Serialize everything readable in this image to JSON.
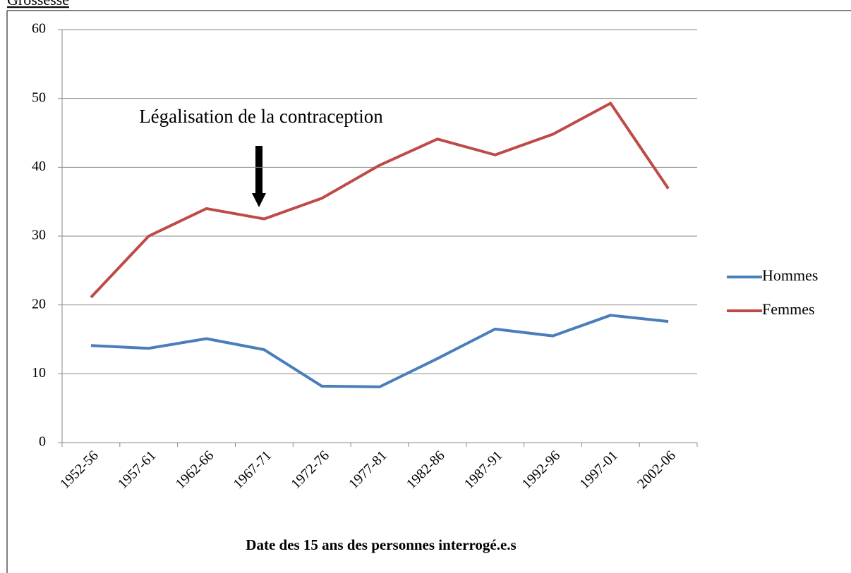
{
  "heading": "Grossesse",
  "chart_data": {
    "type": "line",
    "annotation": "Légalisation de la contraception",
    "x_label": "Date des 15 ans des personnes interrogé.e.s",
    "categories": [
      "1952-56",
      "1957-61",
      "1962-66",
      "1967-71",
      "1972-76",
      "1977-81",
      "1982-86",
      "1987-91",
      "1992-96",
      "1997-01",
      "2002-06"
    ],
    "series": [
      {
        "name": "Hommes",
        "color": "#4a7ebb",
        "values": [
          14.1,
          13.7,
          15.1,
          13.5,
          8.2,
          8.1,
          12.2,
          16.5,
          15.5,
          18.5,
          17.6
        ]
      },
      {
        "name": "Femmes",
        "color": "#be4b48",
        "values": [
          21.1,
          30.0,
          34.0,
          32.5,
          35.5,
          40.3,
          44.1,
          41.8,
          44.8,
          49.3,
          36.9
        ]
      }
    ],
    "ylim": [
      0,
      60
    ],
    "yticks": [
      0,
      10,
      20,
      30,
      40,
      50,
      60
    ],
    "grid": true,
    "legend": "right"
  }
}
